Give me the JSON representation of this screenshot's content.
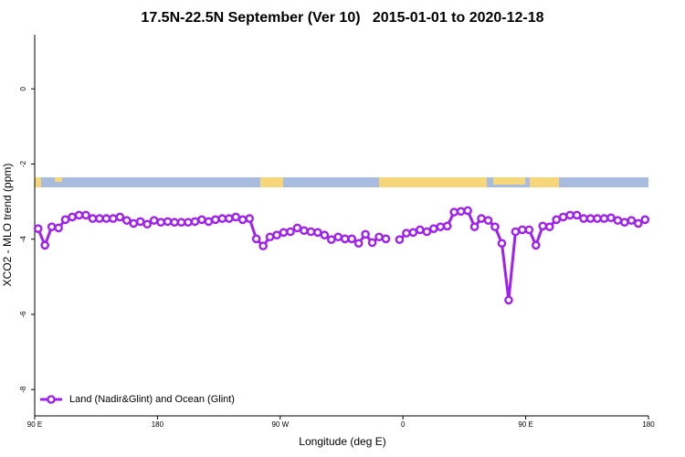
{
  "chart_data": {
    "type": "line",
    "title": "17.5N-22.5N September (Ver 10)   2015-01-01 to 2020-12-18",
    "xlabel": "Longitude (deg E)",
    "ylabel": "XCO2 - MLO trend (ppm)",
    "x": [
      92.5,
      97.5,
      102.5,
      107.5,
      112.5,
      117.5,
      122.5,
      127.5,
      132.5,
      137.5,
      142.5,
      147.5,
      152.5,
      157.5,
      162.5,
      167.5,
      172.5,
      177.5,
      182.5,
      187.5,
      192.5,
      197.5,
      202.5,
      207.5,
      212.5,
      217.5,
      222.5,
      227.5,
      232.5,
      237.5,
      242.5,
      247.5,
      252.5,
      257.5,
      262.5,
      267.5,
      272.5,
      277.5,
      282.5,
      287.5,
      292.5,
      297.5,
      302.5,
      307.5,
      312.5,
      317.5,
      322.5,
      327.5,
      332.5,
      337.5,
      342.5,
      347.5,
      352.5,
      357.5,
      362.5,
      367.5,
      372.5,
      377.5,
      382.5,
      387.5,
      392.5,
      397.5,
      402.5,
      407.5,
      412.5,
      417.5,
      422.5,
      427.5,
      432.5,
      437.5,
      442.5,
      447.5,
      452.5,
      457.5,
      462.5,
      467.5,
      472.5,
      477.5,
      482.5,
      487.5,
      492.5,
      497.5,
      502.5,
      507.5,
      512.5,
      517.5,
      522.5,
      527.5,
      532.5,
      537.5
    ],
    "series": [
      {
        "name": "Land (Nadir&Glint) and Ocean (Glint)",
        "color": "#a020f0",
        "values": [
          -3.72,
          -4.16,
          -3.67,
          -3.7,
          -3.48,
          -3.41,
          -3.36,
          -3.36,
          -3.45,
          -3.45,
          -3.45,
          -3.45,
          -3.41,
          -3.5,
          -3.58,
          -3.53,
          -3.6,
          -3.5,
          -3.55,
          -3.53,
          -3.55,
          -3.55,
          -3.55,
          -3.53,
          -3.48,
          -3.53,
          -3.48,
          -3.45,
          -3.45,
          -3.41,
          -3.48,
          -3.45,
          -3.99,
          -4.18,
          -3.94,
          -3.89,
          -3.82,
          -3.8,
          -3.7,
          -3.77,
          -3.8,
          -3.82,
          -3.89,
          -4.01,
          -3.94,
          -3.99,
          -3.99,
          -4.11,
          -3.87,
          -4.09,
          -3.94,
          -3.99,
          null,
          -4.01,
          -3.84,
          -3.82,
          -3.75,
          -3.8,
          -3.72,
          -3.67,
          -3.65,
          -3.28,
          -3.26,
          -3.24,
          -3.67,
          -3.45,
          -3.5,
          -3.67,
          -4.11,
          -5.62,
          -3.8,
          -3.75,
          -3.75,
          -4.16,
          -3.65,
          -3.67,
          -3.48,
          -3.41,
          -3.36,
          -3.36,
          -3.45,
          -3.45,
          -3.45,
          -3.45,
          -3.43,
          -3.5,
          -3.55,
          -3.5,
          -3.58,
          -3.48
        ]
      }
    ],
    "xlim": [
      90,
      540
    ],
    "xticks": [
      {
        "value": 90,
        "label": "90 E"
      },
      180,
      {
        "value": 270,
        "label": "90 W"
      },
      {
        "value": 360,
        "label": "0"
      },
      {
        "value": 450,
        "label": "90 E"
      },
      {
        "value": 540,
        "label": "180"
      }
    ],
    "ylim": [
      -8.7,
      1.44
    ],
    "yticks": [
      0,
      -2,
      -4,
      -6,
      -8
    ],
    "legend": "bottom-left"
  }
}
